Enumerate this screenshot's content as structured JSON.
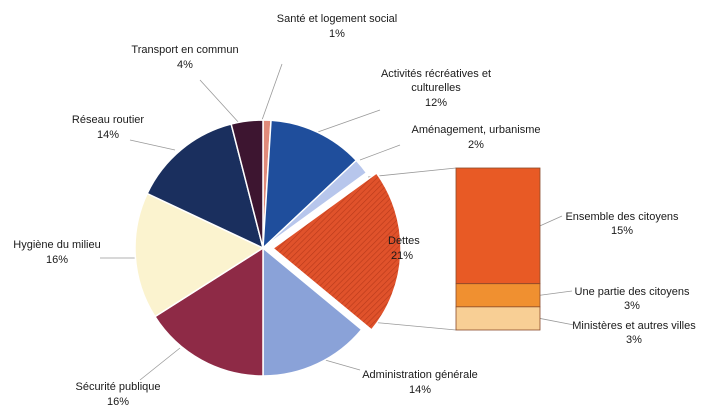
{
  "chart_data": {
    "type": "bar-of-pie",
    "title": "",
    "slices": [
      {
        "name": "Santé et logement social",
        "value": 1,
        "label": "1%",
        "color": "#e08a7a"
      },
      {
        "name": "Activités récréatives et culturelles",
        "value": 12,
        "label": "12%",
        "color": "#1f4e9c"
      },
      {
        "name": "Aménagement, urbanisme",
        "value": 2,
        "label": "2%",
        "color": "#b7c6ec"
      },
      {
        "name": "Dettes",
        "value": 21,
        "label": "21%",
        "color": "#e0522b",
        "exploded": true
      },
      {
        "name": "Administration générale",
        "value": 14,
        "label": "14%",
        "color": "#8aa2d8"
      },
      {
        "name": "Sécurité publique",
        "value": 16,
        "label": "16%",
        "color": "#8e2a46"
      },
      {
        "name": "Hygiène du milieu",
        "value": 16,
        "label": "16%",
        "color": "#fbf3cf"
      },
      {
        "name": "Réseau routier",
        "value": 14,
        "label": "14%",
        "color": "#1a2f5e"
      },
      {
        "name": "Transport en commun",
        "value": 4,
        "label": "4%",
        "color": "#3d1530"
      }
    ],
    "breakdown": {
      "of": "Dettes",
      "segments": [
        {
          "name": "Ensemble des citoyens",
          "value": 15,
          "label": "15%",
          "color": "#e85a25"
        },
        {
          "name": "Une partie des citoyens",
          "value": 3,
          "label": "3%",
          "color": "#f09030"
        },
        {
          "name": "Ministères et autres villes",
          "value": 3,
          "label": "3%",
          "color": "#f8cf95"
        }
      ]
    }
  }
}
